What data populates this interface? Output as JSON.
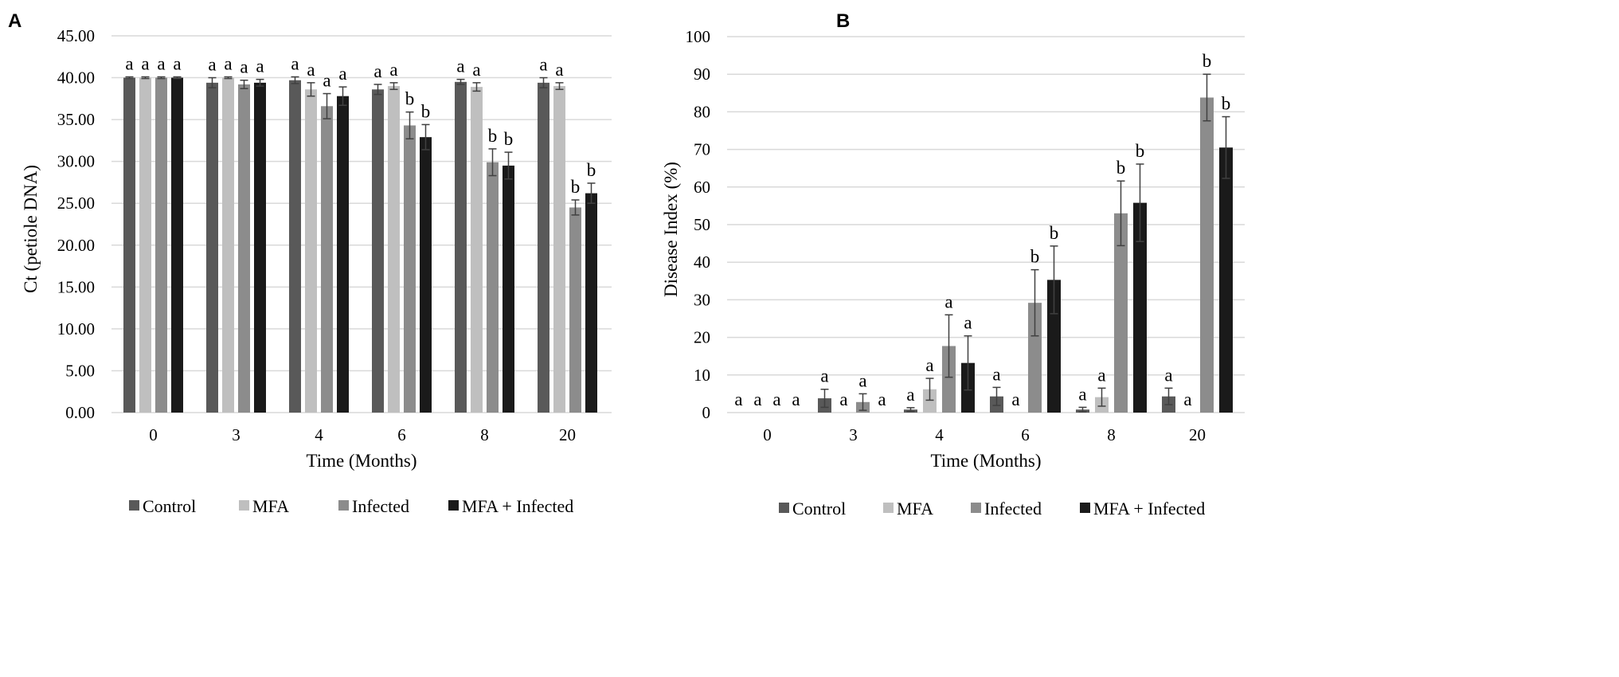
{
  "legend_labels": [
    "Control",
    "MFA",
    "Infected",
    "MFA + Infected"
  ],
  "colors": {
    "Control": "#595959",
    "MFA": "#bfbfbf",
    "Infected": "#8c8c8c",
    "MFA + Infected": "#1a1a1a",
    "grid": "#d9d9d9",
    "errorbar": "#404040",
    "text": "#000000"
  },
  "chart_data": [
    {
      "panel": "A",
      "type": "bar",
      "xlabel": "Time (Months)",
      "ylabel": "Ct (petiole DNA)",
      "ylim": [
        0,
        45
      ],
      "yticks": [
        "0.00",
        "5.00",
        "10.00",
        "15.00",
        "20.00",
        "25.00",
        "30.00",
        "35.00",
        "40.00",
        "45.00"
      ],
      "categories": [
        "0",
        "3",
        "4",
        "6",
        "8",
        "20"
      ],
      "series": [
        {
          "name": "Control",
          "values": [
            40.0,
            39.4,
            39.7,
            38.6,
            39.5,
            39.4
          ],
          "errors": [
            0.1,
            0.6,
            0.4,
            0.6,
            0.3,
            0.6
          ],
          "letters": [
            "a",
            "a",
            "a",
            "a",
            "a",
            "a"
          ]
        },
        {
          "name": "MFA",
          "values": [
            40.0,
            40.0,
            38.6,
            39.0,
            38.9,
            39.0
          ],
          "errors": [
            0.1,
            0.1,
            0.8,
            0.4,
            0.5,
            0.4
          ],
          "letters": [
            "a",
            "a",
            "a",
            "a",
            "a",
            "a"
          ]
        },
        {
          "name": "Infected",
          "values": [
            40.0,
            39.2,
            36.6,
            34.3,
            29.9,
            24.5
          ],
          "errors": [
            0.1,
            0.5,
            1.5,
            1.6,
            1.6,
            0.9
          ],
          "letters": [
            "a",
            "a",
            "a",
            "b",
            "b",
            "b"
          ]
        },
        {
          "name": "MFA + Infected",
          "values": [
            40.0,
            39.4,
            37.8,
            32.9,
            29.5,
            26.2
          ],
          "errors": [
            0.1,
            0.4,
            1.1,
            1.5,
            1.6,
            1.2
          ],
          "letters": [
            "a",
            "a",
            "a",
            "b",
            "b",
            "b"
          ]
        }
      ]
    },
    {
      "panel": "B",
      "type": "bar",
      "xlabel": "Time (Months)",
      "ylabel": "Disease Index (%)",
      "ylim": [
        0,
        100
      ],
      "yticks": [
        "0",
        "10",
        "20",
        "30",
        "40",
        "50",
        "60",
        "70",
        "80",
        "90",
        "100"
      ],
      "categories": [
        "0",
        "3",
        "4",
        "6",
        "8",
        "20"
      ],
      "series": [
        {
          "name": "Control",
          "values": [
            0,
            3.8,
            0.8,
            4.3,
            0.8,
            4.3
          ],
          "errors": [
            0,
            2.4,
            0.5,
            2.4,
            0.6,
            2.2
          ],
          "letters": [
            "a",
            "a",
            "a",
            "a",
            "a",
            "a"
          ]
        },
        {
          "name": "MFA",
          "values": [
            0,
            0,
            6.2,
            0,
            4.1,
            0
          ],
          "errors": [
            0,
            0,
            2.9,
            0,
            2.4,
            0
          ],
          "letters": [
            "a",
            "a",
            "a",
            "a",
            "a",
            "a"
          ]
        },
        {
          "name": "Infected",
          "values": [
            0,
            2.8,
            17.7,
            29.2,
            53.0,
            83.8
          ],
          "errors": [
            0,
            2.2,
            8.3,
            8.8,
            8.6,
            6.2
          ],
          "letters": [
            "a",
            "a",
            "a",
            "b",
            "b",
            "b"
          ]
        },
        {
          "name": "MFA + Infected",
          "values": [
            0,
            0,
            13.2,
            35.3,
            55.8,
            70.5
          ],
          "errors": [
            0,
            0,
            7.2,
            9.0,
            10.3,
            8.2
          ],
          "letters": [
            "a",
            "a",
            "a",
            "b",
            "b",
            "b"
          ]
        }
      ]
    }
  ]
}
